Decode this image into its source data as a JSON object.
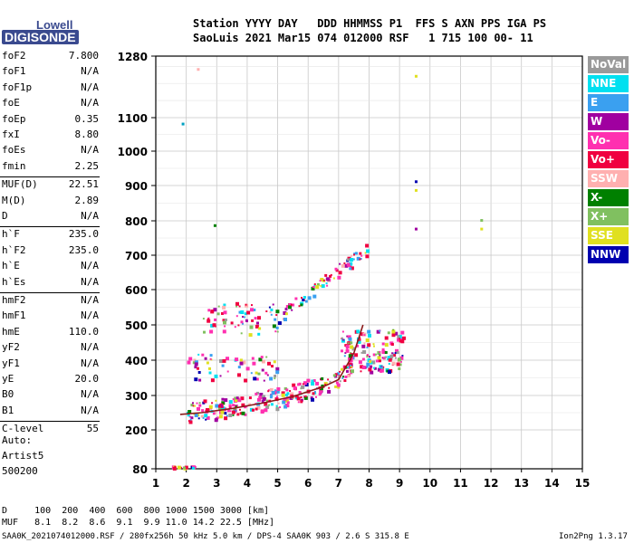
{
  "logo": {
    "top": "Lowell",
    "bottom": "DIGISONDE"
  },
  "header": {
    "line1": "Station YYYY DAY   DDD HHMMSS P1  FFS S AXN PPS IGA PS",
    "line2": "SaoLuis 2021 Mar15 074 012000 RSF   1 715 100 00- 11"
  },
  "params": [
    {
      "name": "foF2",
      "value": "7.800"
    },
    {
      "name": "foF1",
      "value": "N/A"
    },
    {
      "name": "foF1p",
      "value": "N/A"
    },
    {
      "name": "foE",
      "value": "N/A"
    },
    {
      "name": "foEp",
      "value": "0.35"
    },
    {
      "name": "fxI",
      "value": "8.80"
    },
    {
      "name": "foEs",
      "value": "N/A"
    },
    {
      "name": "fmin",
      "value": "2.25"
    },
    {
      "name": "MUF(D)",
      "value": "22.51"
    },
    {
      "name": "M(D)",
      "value": "2.89"
    },
    {
      "name": "D",
      "value": "N/A"
    },
    {
      "name": "h`F",
      "value": "235.0"
    },
    {
      "name": "h`F2",
      "value": "235.0"
    },
    {
      "name": "h`E",
      "value": "N/A"
    },
    {
      "name": "h`Es",
      "value": "N/A"
    },
    {
      "name": "hmF2",
      "value": "N/A"
    },
    {
      "name": "hmF1",
      "value": "N/A"
    },
    {
      "name": "hmE",
      "value": "110.0"
    },
    {
      "name": "yF2",
      "value": "N/A"
    },
    {
      "name": "yF1",
      "value": "N/A"
    },
    {
      "name": "yE",
      "value": "20.0"
    },
    {
      "name": "B0",
      "value": "N/A"
    },
    {
      "name": "B1",
      "value": "N/A"
    },
    {
      "name": "C-level",
      "value": "55"
    }
  ],
  "auto": {
    "line1": "Auto:",
    "line2": "Artist5",
    "line3": "500200"
  },
  "legend": [
    {
      "label": "NoVal",
      "color": "#9a9a9a"
    },
    {
      "label": "NNE",
      "color": "#00e0f0"
    },
    {
      "label": "E",
      "color": "#3aa0f0"
    },
    {
      "label": "W",
      "color": "#a000a0"
    },
    {
      "label": "Vo-",
      "color": "#ff30b0"
    },
    {
      "label": "Vo+",
      "color": "#f00040"
    },
    {
      "label": "SSW",
      "color": "#ffb0b0"
    },
    {
      "label": "X-",
      "color": "#008000"
    },
    {
      "label": "X+",
      "color": "#80c060"
    },
    {
      "label": "SSE",
      "color": "#e0e020"
    },
    {
      "label": "NNW",
      "color": "#0000b0"
    }
  ],
  "footer": {
    "d_row": "D     100  200  400  600  800 1000 1500 3000 [km]",
    "muf_row": "MUF   8.1  8.2  8.6  9.1  9.9 11.0 14.2 22.5 [MHz]",
    "file_info": "SAA0K_2021074012000.RSF / 280fx256h 50 kHz 5.0 km / DPS-4 SAA0K 903 / 2.6 S 315.8 E",
    "version": "Ion2Png 1.3.17"
  },
  "chart_data": {
    "type": "scatter",
    "xlim": [
      1,
      15
    ],
    "ylim": [
      80,
      1280
    ],
    "x_ticks": [
      "1",
      "2",
      "3",
      "4",
      "5",
      "6",
      "7",
      "8",
      "9",
      "10",
      "11",
      "12",
      "13",
      "14",
      "15"
    ],
    "y_ticks": [
      "80",
      "200",
      "300",
      "400",
      "500",
      "600",
      "700",
      "800",
      "900",
      "1000",
      "1100",
      "1280"
    ],
    "trace": [
      [
        2.0,
        245
      ],
      [
        2.5,
        250
      ],
      [
        3.0,
        255
      ],
      [
        3.5,
        262
      ],
      [
        4.0,
        270
      ],
      [
        4.5,
        278
      ],
      [
        5.0,
        287
      ],
      [
        5.5,
        297
      ],
      [
        6.0,
        310
      ],
      [
        6.5,
        325
      ],
      [
        7.0,
        345
      ],
      [
        7.3,
        375
      ],
      [
        7.6,
        430
      ],
      [
        7.8,
        510
      ]
    ],
    "main_trace": [
      [
        1.8,
        245
      ],
      [
        2.5,
        250
      ],
      [
        3.5,
        262
      ],
      [
        4.5,
        278
      ],
      [
        5.5,
        297
      ],
      [
        6.5,
        325
      ],
      [
        7.0,
        345
      ],
      [
        7.5,
        420
      ],
      [
        7.8,
        500
      ]
    ],
    "clusters": [
      {
        "x": [
          2.0,
          7.5
        ],
        "y_base": [
          240,
          330
        ],
        "spread": 30,
        "n": 260,
        "kind": "curve"
      },
      {
        "x": [
          7.0,
          9.1
        ],
        "y_center": 430,
        "spread": 60,
        "n": 160,
        "kind": "blob"
      },
      {
        "x": [
          2.5,
          5.0
        ],
        "y_center": 520,
        "spread": 45,
        "n": 70,
        "kind": "blob"
      },
      {
        "x": [
          5.0,
          8.0
        ],
        "y_base": [
          520,
          720
        ],
        "spread": 18,
        "n": 80,
        "kind": "curve"
      },
      {
        "x": [
          2.0,
          5.0
        ],
        "y_center": 380,
        "spread": 40,
        "n": 60,
        "kind": "blob"
      },
      {
        "x": [
          1.5,
          2.3
        ],
        "y_center": 88,
        "spread": 3,
        "n": 20,
        "kind": "blob"
      }
    ],
    "outliers": [
      {
        "x": 1.85,
        "y": 1085,
        "color": "#00a0c0"
      },
      {
        "x": 2.9,
        "y": 790,
        "color": "#008000"
      },
      {
        "x": 2.35,
        "y": 1245,
        "color": "#ffb0b0"
      },
      {
        "x": 9.5,
        "y": 1225,
        "color": "#e0e020"
      },
      {
        "x": 9.5,
        "y": 915,
        "color": "#0000b0"
      },
      {
        "x": 9.5,
        "y": 890,
        "color": "#e0e020"
      },
      {
        "x": 9.5,
        "y": 780,
        "color": "#a000a0"
      },
      {
        "x": 11.65,
        "y": 805,
        "color": "#80c060"
      },
      {
        "x": 11.65,
        "y": 780,
        "color": "#e0e020"
      }
    ]
  }
}
